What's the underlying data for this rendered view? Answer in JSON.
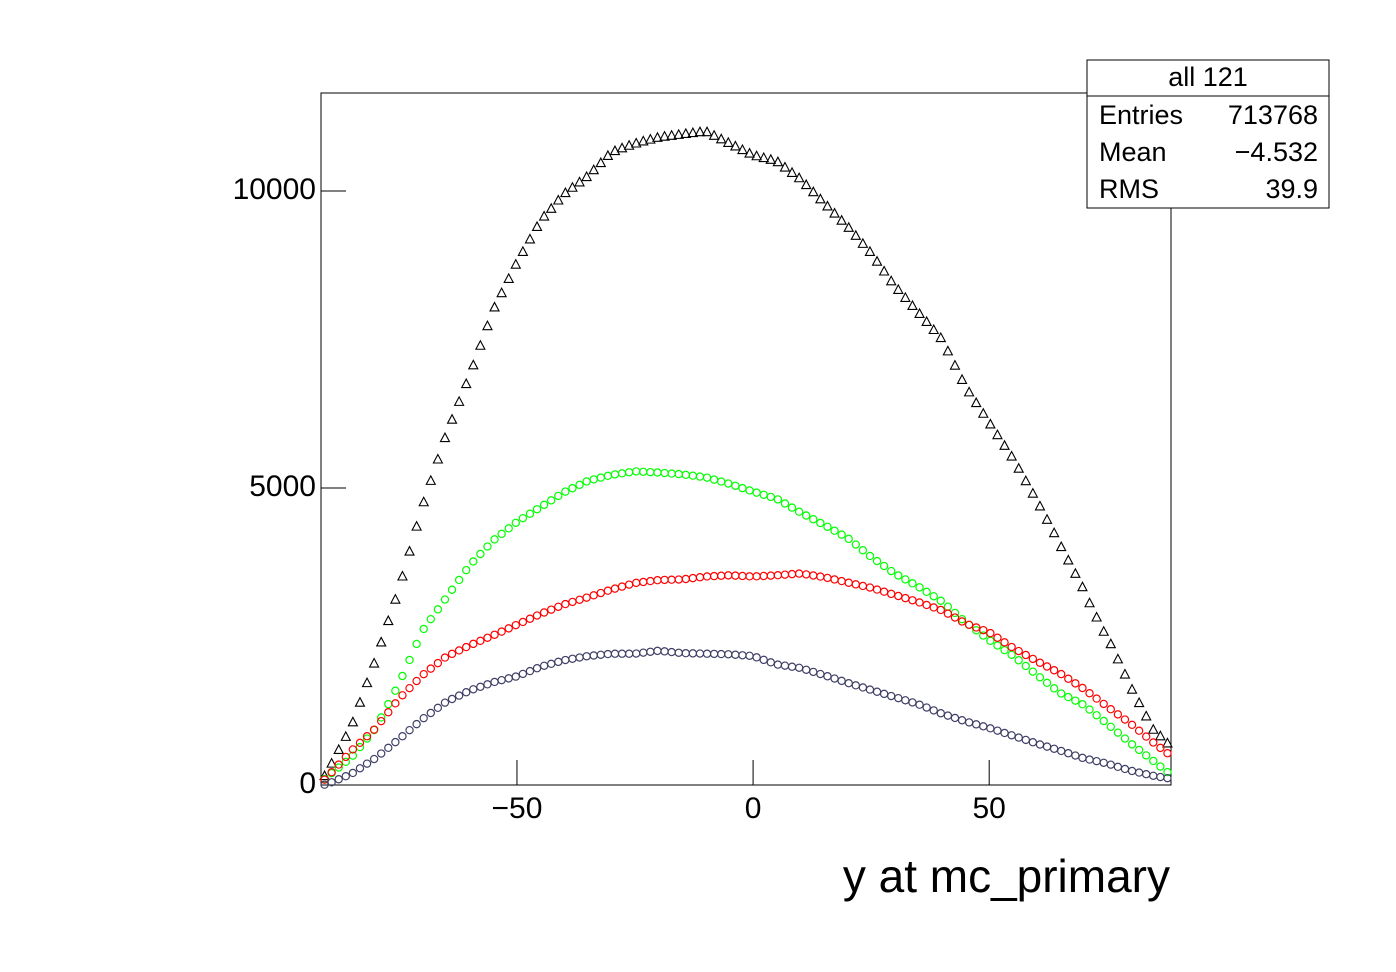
{
  "chart_data": {
    "type": "histogram",
    "x_label": "y at mc_primary",
    "bins": [
      -91.5,
      -90,
      -88.5,
      -87,
      -85.5,
      -84,
      -82.5,
      -81,
      -79.5,
      -78,
      -76.5,
      -75,
      -73.5,
      -72,
      -70.5,
      -69,
      -67.5,
      -66,
      -64.5,
      -63,
      -61.5,
      -60,
      -58.5,
      -57,
      -55.5,
      -54,
      -52.5,
      -51,
      -49.5,
      -48,
      -46.5,
      -45,
      -43.5,
      -42,
      -40.5,
      -39,
      -37.5,
      -36,
      -34.5,
      -33,
      -31.5,
      -30,
      -28.5,
      -27,
      -25.5,
      -24,
      -22.5,
      -21,
      -19.5,
      -18,
      -16.5,
      -15,
      -13.5,
      -12,
      -10.5,
      -9,
      -7.5,
      -6,
      -4.5,
      -3,
      -1.5,
      0,
      1.5,
      3,
      4.5,
      6,
      7.5,
      9,
      10.5,
      12,
      13.5,
      15,
      16.5,
      18,
      19.5,
      21,
      22.5,
      24,
      25.5,
      27,
      28.5,
      30,
      31.5,
      33,
      34.5,
      36,
      37.5,
      39,
      40.5,
      42,
      43.5,
      45,
      46.5,
      48,
      49.5,
      51,
      52.5,
      54,
      55.5,
      57,
      58.5,
      60,
      61.5,
      63,
      64.5,
      66,
      67.5,
      69,
      70.5,
      72,
      73.5,
      75,
      76.5,
      78,
      79.5,
      81,
      82.5,
      84,
      85.5,
      87,
      88.5
    ],
    "series": [
      {
        "color": "#000000",
        "marker": "open-triangle",
        "values": [
          150,
          360,
          590,
          810,
          1055,
          1385,
          1715,
          2045,
          2400,
          2760,
          3120,
          3510,
          3930,
          4350,
          4760,
          5120,
          5480,
          5840,
          6150,
          6450,
          6750,
          7065,
          7395,
          7725,
          8040,
          8280,
          8520,
          8760,
          8975,
          9185,
          9395,
          9570,
          9700,
          9840,
          9965,
          10055,
          10145,
          10235,
          10350,
          10470,
          10590,
          10672,
          10718,
          10762,
          10800,
          10835,
          10865,
          10895,
          10915,
          10930,
          10945,
          10960,
          10975,
          10990,
          10990,
          10930,
          10870,
          10810,
          10750,
          10690,
          10630,
          10585,
          10555,
          10525,
          10485,
          10395,
          10305,
          10215,
          10100,
          9980,
          9860,
          9740,
          9620,
          9500,
          9380,
          9245,
          9110,
          8975,
          8810,
          8645,
          8480,
          8335,
          8200,
          8065,
          7930,
          7795,
          7660,
          7525,
          7300,
          7060,
          6820,
          6610,
          6430,
          6250,
          6070,
          5890,
          5710,
          5530,
          5325,
          5115,
          4905,
          4690,
          4465,
          4240,
          4005,
          3780,
          3555,
          3330,
          3060,
          2820,
          2580,
          2370,
          2115,
          1860,
          1605,
          1380,
          1155,
          930,
          820,
          700
        ]
      },
      {
        "color": "#00ff00",
        "marker": "open-circle",
        "values": [
          100,
          200,
          294,
          390,
          494,
          638,
          782,
          926,
          1137,
          1362,
          1587,
          1835,
          2105,
          2375,
          2627,
          2792,
          2957,
          3122,
          3287,
          3452,
          3617,
          3763,
          3889,
          4015,
          4135,
          4228,
          4321,
          4414,
          4492,
          4567,
          4642,
          4717,
          4792,
          4867,
          4939,
          4996,
          5053,
          5110,
          5145,
          5175,
          5205,
          5229,
          5247,
          5265,
          5279,
          5273,
          5267,
          5261,
          5252,
          5243,
          5234,
          5222,
          5207,
          5192,
          5174,
          5141,
          5108,
          5075,
          5037,
          4998,
          4959,
          4922,
          4886,
          4850,
          4808,
          4739,
          4670,
          4601,
          4537,
          4474,
          4411,
          4347,
          4281,
          4215,
          4144,
          4048,
          3952,
          3856,
          3770,
          3686,
          3602,
          3527,
          3461,
          3395,
          3327,
          3252,
          3177,
          3102,
          3002,
          2897,
          2792,
          2695,
          2605,
          2515,
          2427,
          2349,
          2271,
          2193,
          2100,
          2004,
          1908,
          1813,
          1720,
          1627,
          1540,
          1480,
          1420,
          1360,
          1270,
          1174,
          1078,
          980,
          881,
          782,
          684,
          591,
          498,
          405,
          311,
          217
        ]
      },
      {
        "color": "#ff0000",
        "marker": "open-circle",
        "values": [
          90,
          215,
          344,
          473,
          599,
          710,
          821,
          932,
          1075,
          1225,
          1375,
          1510,
          1630,
          1750,
          1866,
          1959,
          2052,
          2145,
          2208,
          2265,
          2322,
          2376,
          2427,
          2478,
          2529,
          2583,
          2637,
          2691,
          2745,
          2799,
          2853,
          2904,
          2952,
          3000,
          3046,
          3082,
          3118,
          3154,
          3193,
          3232,
          3271,
          3306,
          3340,
          3373,
          3403,
          3418,
          3433,
          3448,
          3453,
          3456,
          3459,
          3468,
          3483,
          3498,
          3511,
          3517,
          3523,
          3529,
          3525,
          3519,
          3513,
          3513,
          3519,
          3525,
          3532,
          3541,
          3550,
          3559,
          3545,
          3527,
          3509,
          3486,
          3460,
          3433,
          3405,
          3378,
          3351,
          3324,
          3290,
          3254,
          3218,
          3182,
          3146,
          3110,
          3073,
          3031,
          2989,
          2947,
          2885,
          2819,
          2753,
          2697,
          2652,
          2607,
          2557,
          2479,
          2401,
          2323,
          2255,
          2189,
          2123,
          2058,
          1995,
          1932,
          1867,
          1789,
          1711,
          1633,
          1545,
          1455,
          1365,
          1276,
          1189,
          1102,
          1013,
          914,
          815,
          716,
          625,
          535
        ]
      },
      {
        "color": "#3f3f66",
        "marker": "open-circle",
        "values": [
          5,
          46,
          97,
          148,
          203,
          281,
          359,
          437,
          530,
          626,
          722,
          821,
          923,
          1025,
          1125,
          1212,
          1299,
          1386,
          1448,
          1505,
          1562,
          1611,
          1653,
          1695,
          1735,
          1765,
          1795,
          1825,
          1870,
          1918,
          1966,
          2007,
          2040,
          2073,
          2104,
          2125,
          2146,
          2167,
          2180,
          2192,
          2204,
          2210,
          2210,
          2210,
          2213,
          2228,
          2243,
          2258,
          2250,
          2238,
          2226,
          2219,
          2216,
          2213,
          2210,
          2207,
          2204,
          2201,
          2193,
          2184,
          2175,
          2149,
          2107,
          2065,
          2027,
          2009,
          1991,
          1973,
          1940,
          1904,
          1868,
          1831,
          1792,
          1753,
          1714,
          1678,
          1642,
          1606,
          1570,
          1534,
          1498,
          1462,
          1426,
          1390,
          1352,
          1304,
          1256,
          1208,
          1168,
          1129,
          1090,
          1054,
          1021,
          988,
          954,
          915,
          876,
          837,
          798,
          759,
          720,
          682,
          646,
          610,
          573,
          535,
          496,
          457,
          428,
          401,
          374,
          342,
          306,
          270,
          236,
          209,
          182,
          155,
          134,
          115
        ]
      }
    ],
    "xlim": [
      -91.5,
      88.5
    ],
    "ylim": [
      0,
      11650
    ],
    "xticks": [
      {
        "value": -50,
        "label": "−50"
      },
      0,
      50
    ],
    "yticks": [
      0,
      5000,
      10000
    ],
    "grid": false,
    "stats_box": {
      "title": "all 121",
      "rows": [
        [
          "Entries",
          "713768"
        ],
        [
          "Mean",
          "−4.532"
        ],
        [
          "RMS",
          "39.9"
        ]
      ]
    }
  }
}
